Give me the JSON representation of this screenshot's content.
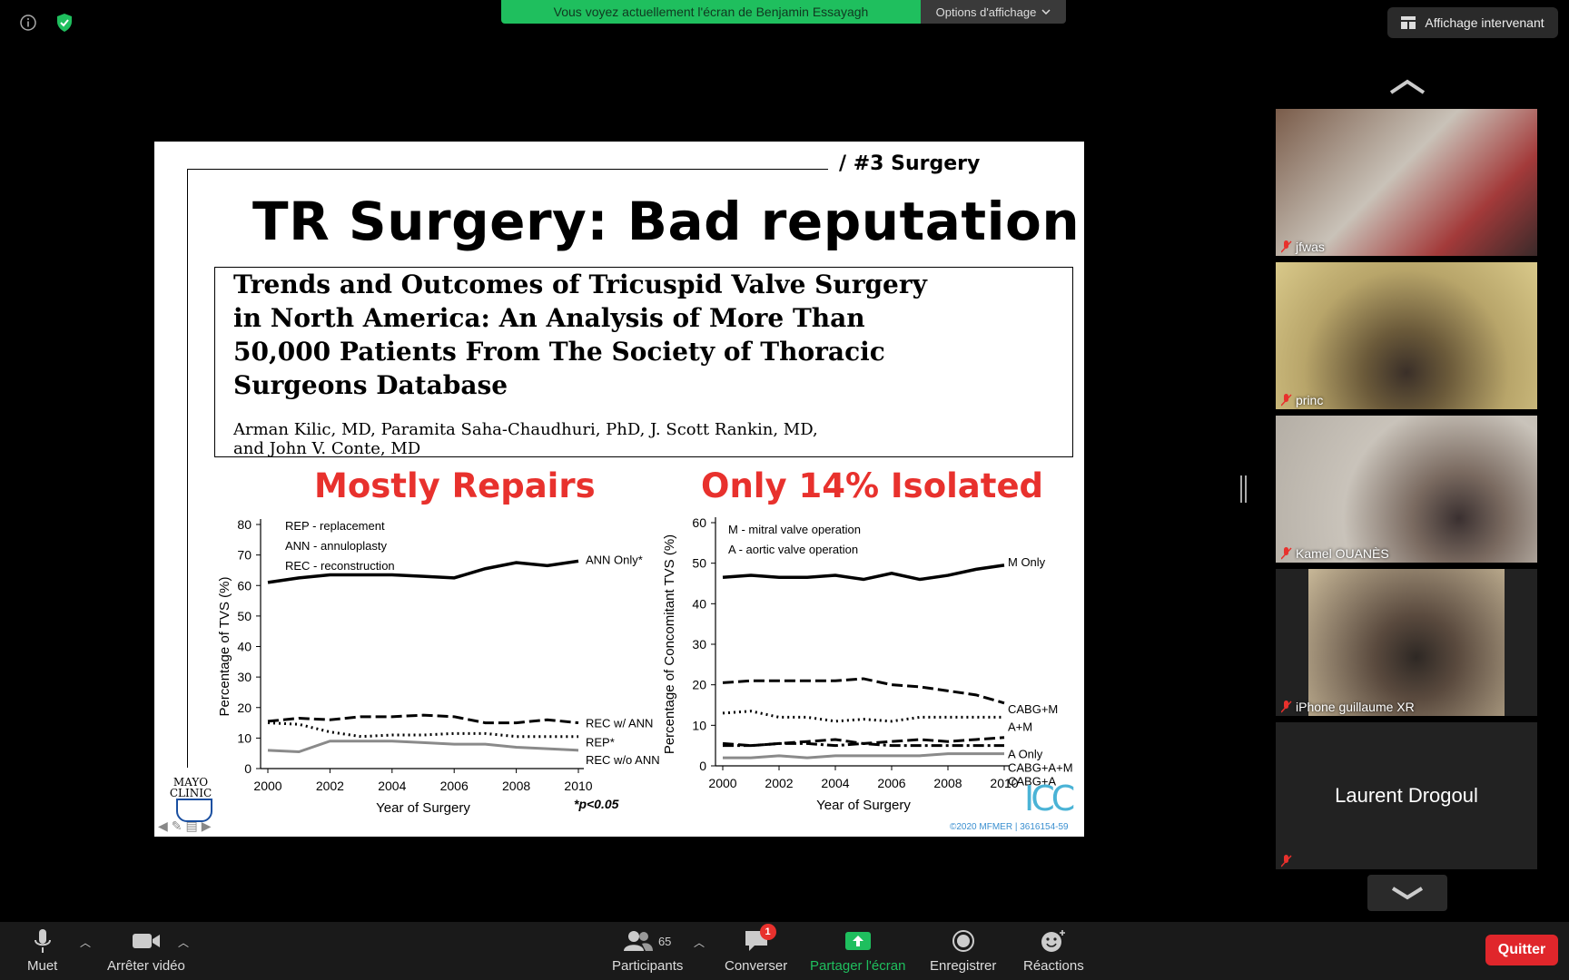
{
  "topbar": {
    "share_banner": "Vous voyez actuellement l'écran de Benjamin Essayagh",
    "view_options": "Options d'affichage",
    "speaker_view": "Affichage intervenant"
  },
  "slide": {
    "tag": "/ #3 Surgery",
    "title": "TR Surgery: Bad reputation",
    "paper_title_lines": [
      "Trends and Outcomes of Tricuspid Valve Surgery",
      "in North America: An Analysis of More Than",
      "50,000 Patients From The Society of Thoracic",
      "Surgeons Database"
    ],
    "paper_authors_lines": [
      "Arman Kilic, MD, Paramita Saha-Chaudhuri, PhD, J. Scott Rankin, MD,",
      "and John V. Conte, MD"
    ],
    "subtitle_left": "Mostly Repairs",
    "subtitle_right": "Only 14% Isolated",
    "mayo_lines": [
      "MAYO",
      "CLINIC"
    ],
    "icc_logo": "ICC",
    "copyright": "©2020 MFMER  |  3616154-59"
  },
  "chart_data": [
    {
      "type": "line",
      "xlabel": "Year of Surgery",
      "ylabel": "Percentage of TVS (%)",
      "ylim": [
        0,
        80
      ],
      "xlim": [
        2000,
        2010
      ],
      "x_ticks": [
        2000,
        2002,
        2004,
        2006,
        2008,
        2010
      ],
      "y_ticks": [
        0,
        10,
        20,
        30,
        40,
        50,
        60,
        70,
        80
      ],
      "legend_text": [
        "REP - replacement",
        "ANN - annuloplasty",
        "REC - reconstruction"
      ],
      "annotation": "*p<0.05",
      "x": [
        2000,
        2001,
        2002,
        2003,
        2004,
        2005,
        2006,
        2007,
        2008,
        2009,
        2010
      ],
      "series": [
        {
          "name": "ANN Only*",
          "style": "solid",
          "color": "#000000",
          "values": [
            61,
            62.5,
            63.5,
            63.5,
            63.5,
            63,
            62.5,
            65.5,
            67.5,
            66.5,
            68
          ]
        },
        {
          "name": "REC w/ ANN",
          "style": "dashed",
          "color": "#000000",
          "values": [
            15.5,
            16.5,
            16,
            17,
            17,
            17.5,
            17,
            15,
            15,
            16,
            15
          ]
        },
        {
          "name": "REP*",
          "style": "dotted",
          "color": "#000000",
          "values": [
            15,
            14.5,
            12,
            10.5,
            11,
            11,
            11.5,
            11.5,
            10.5,
            10.5,
            10.5
          ]
        },
        {
          "name": "REC w/o ANN",
          "style": "solid",
          "color": "#8a8a8a",
          "values": [
            6,
            5.5,
            9,
            9,
            9,
            8.5,
            8,
            8,
            7,
            6.5,
            6
          ]
        }
      ]
    },
    {
      "type": "line",
      "xlabel": "Year of Surgery",
      "ylabel": "Percentage of Concomitant TVS (%)",
      "ylim": [
        0,
        60
      ],
      "xlim": [
        2000,
        2010
      ],
      "x_ticks": [
        2000,
        2002,
        2004,
        2006,
        2008,
        2010
      ],
      "y_ticks": [
        0,
        10,
        20,
        30,
        40,
        50,
        60
      ],
      "legend_text": [
        "M - mitral valve operation",
        "A - aortic valve operation"
      ],
      "x": [
        2000,
        2001,
        2002,
        2003,
        2004,
        2005,
        2006,
        2007,
        2008,
        2009,
        2010
      ],
      "series": [
        {
          "name": "M Only",
          "style": "solid",
          "color": "#000000",
          "values": [
            46.5,
            47,
            46.5,
            46.5,
            47,
            46,
            47.5,
            46,
            47,
            48.5,
            49.5
          ]
        },
        {
          "name": "CABG+M",
          "style": "dashed",
          "color": "#000000",
          "values": [
            20.5,
            21,
            21,
            21,
            21,
            21.5,
            20,
            19.5,
            18.5,
            17.5,
            15.5
          ]
        },
        {
          "name": "A+M",
          "style": "dotted",
          "color": "#000000",
          "values": [
            13,
            13.5,
            12,
            12,
            11,
            11.5,
            11,
            12,
            12,
            12,
            12
          ]
        },
        {
          "name": "A Only",
          "style": "dashed",
          "color": "#000000",
          "values": [
            5.5,
            5,
            5.5,
            6,
            6.5,
            5.5,
            6,
            6.5,
            6,
            6.5,
            7
          ]
        },
        {
          "name": "CABG+A+M",
          "style": "dashdot",
          "color": "#000000",
          "values": [
            5,
            5,
            5.5,
            5.5,
            5,
            5.5,
            5,
            5,
            5,
            5,
            5
          ]
        },
        {
          "name": "CABG+A",
          "style": "solid",
          "color": "#8a8a8a",
          "values": [
            2,
            2,
            2.5,
            2,
            2.5,
            2.5,
            2.5,
            2.5,
            3,
            3,
            3
          ]
        }
      ]
    }
  ],
  "participants_panel": {
    "tiles": [
      {
        "name": "jfwas",
        "bg": "#6b4a3a"
      },
      {
        "name": "princ",
        "bg": "#8f7a3e"
      },
      {
        "name": "Kamel OUANÈS",
        "bg": "#b9b4ab"
      },
      {
        "name": "iPhone guillaume XR",
        "bg": "#4a4038"
      },
      {
        "name": "Laurent Drogoul",
        "bg": "#232323"
      }
    ]
  },
  "toolbar": {
    "mute": "Muet",
    "stop_video": "Arrêter vidéo",
    "participants": "Participants",
    "participants_count": "65",
    "chat": "Converser",
    "chat_badge": "1",
    "share_screen": "Partager l'écran",
    "record": "Enregistrer",
    "reactions": "Réactions",
    "quit": "Quitter"
  },
  "colors": {
    "banner_green": "#1fbf5e",
    "slide_red": "#e8312d",
    "share_green": "#1fbf5e",
    "quit_red": "#e0262b"
  }
}
